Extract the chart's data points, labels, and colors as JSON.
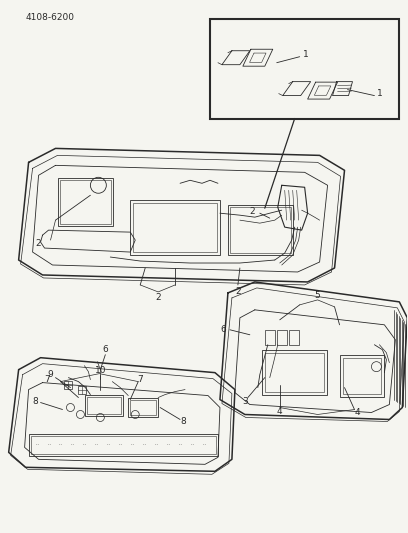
{
  "bg_color": "#f5f5f0",
  "line_color": "#2a2a2a",
  "figsize": [
    4.08,
    5.33
  ],
  "dpi": 100,
  "code_text": "4108-6200",
  "code_fontsize": 6.5
}
